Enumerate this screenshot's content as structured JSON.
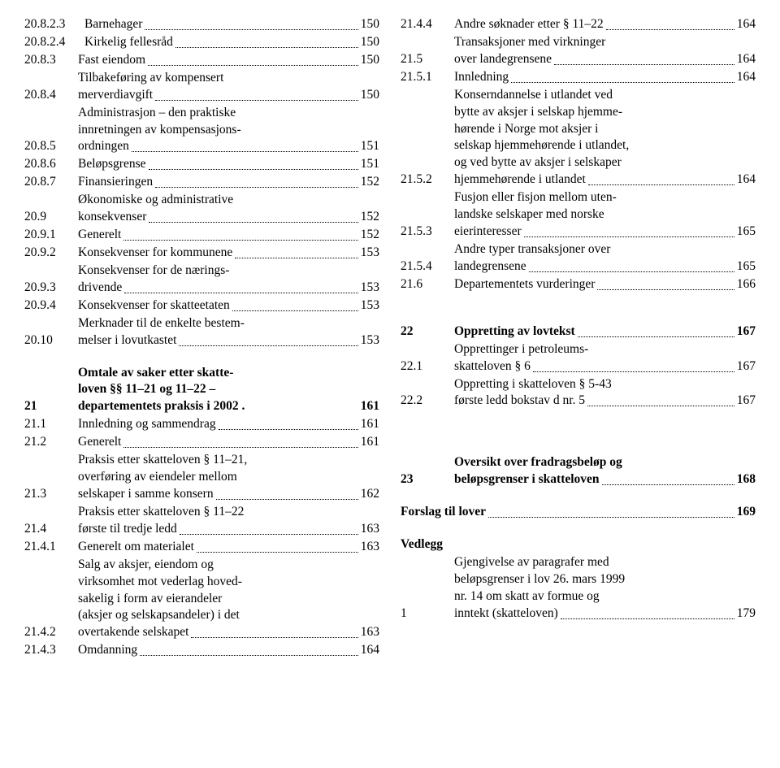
{
  "left": [
    {
      "num": "20.8.2.3",
      "lines": [],
      "last": "Barnehager",
      "page": "150"
    },
    {
      "num": "20.8.2.4",
      "lines": [],
      "last": "Kirkelig fellesråd",
      "page": "150"
    },
    {
      "num": "20.8.3",
      "lines": [],
      "last": "Fast eiendom",
      "page": "150"
    },
    {
      "num": "20.8.4",
      "lines": [
        "Tilbakeføring av kompensert"
      ],
      "last": "merverdiavgift",
      "page": "150"
    },
    {
      "num": "20.8.5",
      "lines": [
        "Administrasjon – den praktiske",
        "innretningen av kompensasjons-"
      ],
      "last": "ordningen",
      "page": "151"
    },
    {
      "num": "20.8.6",
      "lines": [],
      "last": "Beløpsgrense",
      "page": "151"
    },
    {
      "num": "20.8.7",
      "lines": [],
      "last": "Finansieringen",
      "page": "152"
    },
    {
      "num": "20.9",
      "lines": [
        "Økonomiske og administrative"
      ],
      "last": "konsekvenser",
      "page": "152"
    },
    {
      "num": "20.9.1",
      "lines": [],
      "last": "Generelt",
      "page": "152"
    },
    {
      "num": "20.9.2",
      "lines": [],
      "last": "Konsekvenser for kommunene",
      "page": "153"
    },
    {
      "num": "20.9.3",
      "lines": [
        "Konsekvenser for de nærings-"
      ],
      "last": "drivende",
      "page": "153"
    },
    {
      "num": "20.9.4",
      "lines": [],
      "last": "Konsekvenser for skatteetaten",
      "page": "153"
    },
    {
      "num": "20.10",
      "lines": [
        "Merknader til de enkelte bestem-"
      ],
      "last": "melser i lovutkastet",
      "page": "153"
    },
    {
      "spacer": true
    },
    {
      "num": "21",
      "lines": [
        "Omtale av saker etter skatte-",
        "loven §§ 11–21 og 11–22 –"
      ],
      "last": "departementets praksis i 2002 .",
      "page": "161",
      "bold": true,
      "nodots": true
    },
    {
      "num": "21.1",
      "lines": [],
      "last": "Innledning og sammendrag",
      "page": "161"
    },
    {
      "num": "21.2",
      "lines": [],
      "last": "Generelt",
      "page": "161"
    },
    {
      "num": "21.3",
      "lines": [
        "Praksis etter skatteloven § 11–21,",
        "overføring av eiendeler mellom"
      ],
      "last": "selskaper i samme konsern",
      "page": "162"
    },
    {
      "num": "21.4",
      "lines": [
        "Praksis etter skatteloven § 11–22"
      ],
      "last": "første til tredje ledd",
      "page": "163"
    },
    {
      "num": "21.4.1",
      "lines": [],
      "last": "Generelt om materialet",
      "page": "163"
    },
    {
      "num": "21.4.2",
      "lines": [
        "Salg av aksjer, eiendom og",
        "virksomhet mot vederlag hoved-",
        "sakelig i form av eierandeler",
        "(aksjer og selskapsandeler) i det"
      ],
      "last": "overtakende selskapet",
      "page": "163"
    },
    {
      "num": "21.4.3",
      "lines": [],
      "last": "Omdanning",
      "page": "164"
    }
  ],
  "right": [
    {
      "num": "21.4.4",
      "lines": [],
      "last": "Andre søknader etter § 11–22",
      "page": "164"
    },
    {
      "num": "21.5",
      "lines": [
        "Transaksjoner med virkninger"
      ],
      "last": "over landegrensene",
      "page": "164"
    },
    {
      "num": "21.5.1",
      "lines": [],
      "last": "Innledning",
      "page": "164"
    },
    {
      "num": "21.5.2",
      "lines": [
        "Konserndannelse i utlandet ved",
        "bytte av aksjer i selskap hjemme-",
        "hørende i Norge mot aksjer i",
        "selskap hjemmehørende i utlandet,",
        "og ved bytte av aksjer i selskaper"
      ],
      "last": "hjemmehørende i utlandet",
      "page": "164"
    },
    {
      "num": "21.5.3",
      "lines": [
        "Fusjon eller fisjon mellom uten-",
        "landske selskaper med norske"
      ],
      "last": "eierinteresser",
      "page": "165"
    },
    {
      "num": "21.5.4",
      "lines": [
        "Andre typer transaksjoner over"
      ],
      "last": "landegrensene",
      "page": "165"
    },
    {
      "num": "21.6",
      "lines": [],
      "last": "Departementets vurderinger",
      "page": "166"
    },
    {
      "spacer": true
    },
    {
      "spacer": true
    },
    {
      "num": "22",
      "lines": [],
      "last": "Oppretting av lovtekst",
      "page": "167",
      "bold": true
    },
    {
      "num": "22.1",
      "lines": [
        "Opprettinger i petroleums-"
      ],
      "last": "skatteloven § 6",
      "page": "167"
    },
    {
      "num": "22.2",
      "lines": [
        "Oppretting i skatteloven § 5-43"
      ],
      "last": "første ledd bokstav d nr. 5",
      "page": "167"
    },
    {
      "spacer": true
    },
    {
      "spacer": true
    },
    {
      "spacer": true
    },
    {
      "num": "23",
      "lines": [
        "Oversikt over fradragsbeløp og"
      ],
      "last": "beløpsgrenser i skatteloven",
      "page": "168",
      "bold": true
    },
    {
      "spacer": true
    },
    {
      "num": "",
      "lines": [],
      "last": "Forslag til lover",
      "page": "169",
      "bold": true,
      "nonum": true
    },
    {
      "spacer": true
    },
    {
      "num": "",
      "lines": [
        "Vedlegg"
      ],
      "last": "",
      "page": "",
      "bold": true,
      "nonum": true,
      "nodots": true,
      "nopage": true
    },
    {
      "num": "1",
      "lines": [
        "Gjengivelse av paragrafer med",
        "beløpsgrenser i lov 26. mars 1999",
        "nr. 14 om skatt av formue og"
      ],
      "last": "inntekt (skatteloven)",
      "page": "179"
    }
  ]
}
